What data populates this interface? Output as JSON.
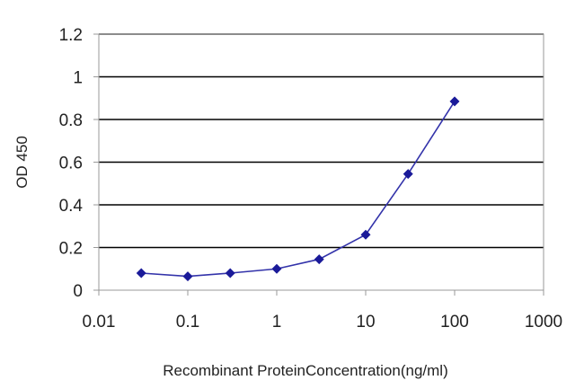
{
  "chart_data": {
    "type": "line",
    "x_scale": "log",
    "xlabel": "Recombinant ProteinConcentration(ng/ml)",
    "ylabel": "OD 450",
    "xlim": [
      0.01,
      1000
    ],
    "ylim": [
      0,
      1.2
    ],
    "x_tick_labels": [
      "0.01",
      "0.1",
      "1",
      "10",
      "100",
      "1000"
    ],
    "y_tick_labels": [
      "0",
      "0.2",
      "0.4",
      "0.6",
      "0.8",
      "1",
      "1.2"
    ],
    "grid": "horizontal",
    "legend": "none",
    "series": [
      {
        "x": [
          0.03,
          0.1,
          0.3,
          1,
          3,
          10,
          30,
          100
        ],
        "y": [
          0.08,
          0.065,
          0.08,
          0.1,
          0.145,
          0.26,
          0.545,
          0.885
        ]
      }
    ],
    "colors": {
      "line": "#3333aa",
      "marker": "#1a1a99",
      "grid": "#000000",
      "axis": "#999999"
    }
  }
}
